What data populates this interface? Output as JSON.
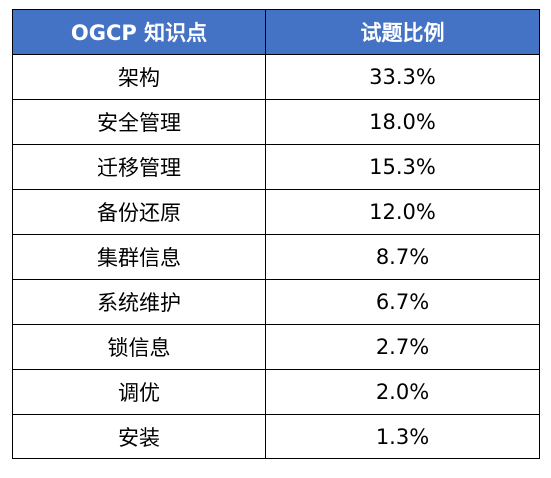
{
  "table": {
    "headers": [
      "OGCP 知识点",
      "试题比例"
    ],
    "rows": [
      [
        "架构",
        "33.3%"
      ],
      [
        "安全管理",
        "18.0%"
      ],
      [
        "迁移管理",
        "15.3%"
      ],
      [
        "备份还原",
        "12.0%"
      ],
      [
        "集群信息",
        "8.7%"
      ],
      [
        "系统维护",
        "6.7%"
      ],
      [
        "锁信息",
        "2.7%"
      ],
      [
        "调优",
        "2.0%"
      ],
      [
        "安装",
        "1.3%"
      ]
    ]
  },
  "colors": {
    "header_bg": "#4472c4",
    "header_text": "#ffffff",
    "border": "#000000",
    "cell_text": "#000000"
  }
}
